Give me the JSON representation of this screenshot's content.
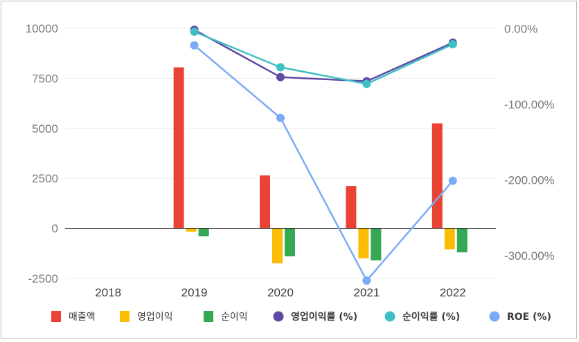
{
  "chart_data": {
    "type": "bar",
    "categories": [
      "2018",
      "2019",
      "2020",
      "2021",
      "2022"
    ],
    "bar_series": [
      {
        "name": "매출액",
        "color": "#ea4335",
        "values": [
          null,
          8050,
          2650,
          2120,
          5250
        ]
      },
      {
        "name": "영업이익",
        "color": "#fbbc04",
        "values": [
          null,
          -170,
          -1750,
          -1500,
          -1050
        ]
      },
      {
        "name": "순이익",
        "color": "#34a853",
        "values": [
          null,
          -400,
          -1400,
          -1600,
          -1200
        ]
      }
    ],
    "line_series": [
      {
        "name": "영업이익률 (%)",
        "color": "#5e4aa5",
        "axis": "right",
        "values": [
          null,
          -1.5,
          -64.0,
          -69.5,
          -18.5
        ]
      },
      {
        "name": "순이익률 (%)",
        "color": "#3fbfc4",
        "axis": "right",
        "values": [
          null,
          -4.0,
          -51.0,
          -73.0,
          -20.5
        ]
      },
      {
        "name": "ROE (%)",
        "color": "#7baaf7",
        "axis": "right",
        "values": [
          null,
          -22.0,
          -118.0,
          -333.0,
          -201.0
        ]
      }
    ],
    "left_axis": {
      "ylim": [
        -2500,
        10000
      ],
      "ticks": [
        "10000",
        "7500",
        "5000",
        "2500",
        "0",
        "-2500"
      ],
      "tick_values": [
        10000,
        7500,
        5000,
        2500,
        0,
        -2500
      ]
    },
    "right_axis": {
      "ylim": [
        -333,
        0
      ],
      "ticks": [
        "0.00%",
        "-100.00%",
        "-200.00%",
        "-300.00%"
      ],
      "tick_values": [
        0,
        -100,
        -200,
        -300
      ]
    },
    "legend_position": "bottom",
    "grid": true
  }
}
